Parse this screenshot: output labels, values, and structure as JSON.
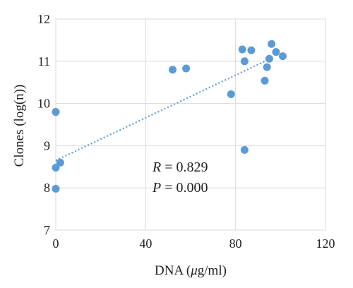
{
  "chart_data": {
    "type": "scatter",
    "xlabel": "DNA (μg/ml)",
    "ylabel": "Clones (log(n))",
    "xlim": [
      0,
      120
    ],
    "ylim": [
      7,
      12
    ],
    "xticks": [
      0,
      40,
      80,
      120
    ],
    "yticks": [
      7,
      8,
      9,
      10,
      11,
      12
    ],
    "grid": true,
    "marker_color": "#5b9bd5",
    "trendline": {
      "style": "dotted",
      "color": "#5b9bd5",
      "x": [
        0,
        95
      ],
      "y": [
        8.65,
        11.05
      ]
    },
    "points": [
      {
        "x": 0,
        "y": 7.98
      },
      {
        "x": 0,
        "y": 8.48
      },
      {
        "x": 2,
        "y": 8.6
      },
      {
        "x": 0,
        "y": 9.8
      },
      {
        "x": 52,
        "y": 10.8
      },
      {
        "x": 58,
        "y": 10.83
      },
      {
        "x": 78,
        "y": 10.22
      },
      {
        "x": 83,
        "y": 11.28
      },
      {
        "x": 84,
        "y": 11.0
      },
      {
        "x": 84,
        "y": 8.9
      },
      {
        "x": 87,
        "y": 11.26
      },
      {
        "x": 93,
        "y": 10.54
      },
      {
        "x": 94,
        "y": 10.86
      },
      {
        "x": 95,
        "y": 11.06
      },
      {
        "x": 96,
        "y": 11.41
      },
      {
        "x": 98,
        "y": 11.22
      },
      {
        "x": 101,
        "y": 11.12
      }
    ],
    "annotations": {
      "r_var": "R",
      "r_value": " = 0.829",
      "p_var": "P",
      "p_value": " = 0.000"
    },
    "xlabel_parts": {
      "pre": "DNA (",
      "mu": "μ",
      "post": "g/ml)"
    }
  }
}
